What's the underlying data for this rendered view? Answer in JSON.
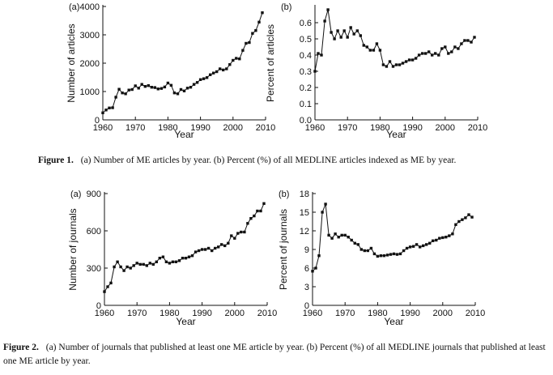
{
  "figures": [
    {
      "label": "Figure 1.",
      "caption": "(a) Number of ME articles by year. (b) Percent (%) of all MEDLINE articles indexed as ME by year."
    },
    {
      "label": "Figure 2.",
      "caption": "(a) Number of journals that published at least one ME article by year. (b) Percent (%) of all MEDLINE journals that published at least one ME article by year."
    }
  ],
  "chart_data": [
    {
      "id": "fig1a",
      "type": "line",
      "panel_label": "(a)",
      "title": "",
      "xlabel": "Year",
      "ylabel": "Number of articles",
      "xlim": [
        1960,
        2010
      ],
      "ylim": [
        0,
        4000
      ],
      "xticks": [
        1960,
        1970,
        1980,
        1990,
        2000,
        2010
      ],
      "yticks": [
        0,
        1000,
        2000,
        3000,
        4000
      ],
      "ytick_labels": [
        "0",
        "1000",
        "2000",
        "3000",
        "4000"
      ],
      "marker": "square",
      "grid": false,
      "series": [
        {
          "x": [
            1960,
            1961,
            1962,
            1963,
            1964,
            1965,
            1966,
            1967,
            1968,
            1969,
            1970,
            1971,
            1972,
            1973,
            1974,
            1975,
            1976,
            1977,
            1978,
            1979,
            1980,
            1981,
            1982,
            1983,
            1984,
            1985,
            1986,
            1987,
            1988,
            1989,
            1990,
            1991,
            1992,
            1993,
            1994,
            1995,
            1996,
            1997,
            1998,
            1999,
            2000,
            2001,
            2002,
            2003,
            2004,
            2005,
            2006,
            2007,
            2008,
            2009
          ],
          "y": [
            250,
            350,
            420,
            430,
            800,
            1080,
            950,
            920,
            1050,
            1070,
            1200,
            1120,
            1250,
            1180,
            1210,
            1150,
            1140,
            1090,
            1110,
            1160,
            1300,
            1220,
            950,
            920,
            1070,
            1020,
            1120,
            1150,
            1250,
            1320,
            1420,
            1450,
            1490,
            1590,
            1650,
            1700,
            1800,
            1760,
            1800,
            1950,
            2100,
            2170,
            2150,
            2450,
            2700,
            2730,
            3050,
            3150,
            3450,
            3780
          ]
        }
      ]
    },
    {
      "id": "fig1b",
      "type": "line",
      "panel_label": "(b)",
      "title": "",
      "xlabel": "Year",
      "ylabel": "Percent of articles",
      "xlim": [
        1960,
        2010
      ],
      "ylim": [
        0,
        0.7
      ],
      "xticks": [
        1960,
        1970,
        1980,
        1990,
        2000,
        2010
      ],
      "yticks": [
        0,
        0.1,
        0.2,
        0.3,
        0.4,
        0.5,
        0.6
      ],
      "ytick_labels": [
        "0.0",
        "0.1",
        "0.2",
        "0.3",
        "0.4",
        "0.5",
        "0.6"
      ],
      "marker": "square",
      "grid": false,
      "series": [
        {
          "x": [
            1960,
            1961,
            1962,
            1963,
            1964,
            1965,
            1966,
            1967,
            1968,
            1969,
            1970,
            1971,
            1972,
            1973,
            1974,
            1975,
            1976,
            1977,
            1978,
            1979,
            1980,
            1981,
            1982,
            1983,
            1984,
            1985,
            1986,
            1987,
            1988,
            1989,
            1990,
            1991,
            1992,
            1993,
            1994,
            1995,
            1996,
            1997,
            1998,
            1999,
            2000,
            2001,
            2002,
            2003,
            2004,
            2005,
            2006,
            2007,
            2008,
            2009
          ],
          "y": [
            0.3,
            0.41,
            0.4,
            0.61,
            0.68,
            0.54,
            0.5,
            0.55,
            0.51,
            0.55,
            0.51,
            0.57,
            0.53,
            0.55,
            0.52,
            0.46,
            0.45,
            0.43,
            0.43,
            0.47,
            0.43,
            0.34,
            0.33,
            0.36,
            0.33,
            0.34,
            0.34,
            0.35,
            0.36,
            0.37,
            0.37,
            0.38,
            0.4,
            0.41,
            0.41,
            0.42,
            0.4,
            0.41,
            0.4,
            0.44,
            0.45,
            0.41,
            0.42,
            0.45,
            0.44,
            0.47,
            0.49,
            0.49,
            0.48,
            0.51
          ]
        }
      ]
    },
    {
      "id": "fig2a",
      "type": "line",
      "panel_label": "(a)",
      "title": "",
      "xlabel": "Year",
      "ylabel": "Number of journals",
      "xlim": [
        1960,
        2010
      ],
      "ylim": [
        0,
        900
      ],
      "xticks": [
        1960,
        1970,
        1980,
        1990,
        2000,
        2010
      ],
      "yticks": [
        0,
        300,
        600,
        900
      ],
      "ytick_labels": [
        "0",
        "300",
        "600",
        "900"
      ],
      "marker": "square",
      "grid": false,
      "series": [
        {
          "x": [
            1960,
            1961,
            1962,
            1963,
            1964,
            1965,
            1966,
            1967,
            1968,
            1969,
            1970,
            1971,
            1972,
            1973,
            1974,
            1975,
            1976,
            1977,
            1978,
            1979,
            1980,
            1981,
            1982,
            1983,
            1984,
            1985,
            1986,
            1987,
            1988,
            1989,
            1990,
            1991,
            1992,
            1993,
            1994,
            1995,
            1996,
            1997,
            1998,
            1999,
            2000,
            2001,
            2002,
            2003,
            2004,
            2005,
            2006,
            2007,
            2008,
            2009
          ],
          "y": [
            110,
            150,
            180,
            310,
            350,
            310,
            280,
            310,
            300,
            320,
            340,
            330,
            330,
            320,
            340,
            330,
            350,
            380,
            390,
            350,
            340,
            350,
            350,
            360,
            380,
            380,
            390,
            400,
            430,
            440,
            450,
            450,
            460,
            440,
            460,
            470,
            490,
            480,
            500,
            560,
            540,
            580,
            590,
            590,
            660,
            700,
            720,
            760,
            760,
            820
          ]
        }
      ]
    },
    {
      "id": "fig2b",
      "type": "line",
      "panel_label": "(b)",
      "title": "",
      "xlabel": "Year",
      "ylabel": "Percent of journals",
      "xlim": [
        1960,
        2010
      ],
      "ylim": [
        0,
        18
      ],
      "xticks": [
        1960,
        1970,
        1980,
        1990,
        2000,
        2010
      ],
      "yticks": [
        0,
        3,
        6,
        9,
        12,
        15,
        18
      ],
      "ytick_labels": [
        "0",
        "3",
        "6",
        "9",
        "12",
        "15",
        "18"
      ],
      "marker": "square",
      "grid": false,
      "series": [
        {
          "x": [
            1960,
            1961,
            1962,
            1963,
            1964,
            1965,
            1966,
            1967,
            1968,
            1969,
            1970,
            1971,
            1972,
            1973,
            1974,
            1975,
            1976,
            1977,
            1978,
            1979,
            1980,
            1981,
            1982,
            1983,
            1984,
            1985,
            1986,
            1987,
            1988,
            1989,
            1990,
            1991,
            1992,
            1993,
            1994,
            1995,
            1996,
            1997,
            1998,
            1999,
            2000,
            2001,
            2002,
            2003,
            2004,
            2005,
            2006,
            2007,
            2008,
            2009
          ],
          "y": [
            5.5,
            6.0,
            8.0,
            15.0,
            16.3,
            11.3,
            10.8,
            11.5,
            11.0,
            11.3,
            11.3,
            11.0,
            10.5,
            10.0,
            9.8,
            9.0,
            8.8,
            8.8,
            9.2,
            8.3,
            7.9,
            8.0,
            8.0,
            8.1,
            8.2,
            8.3,
            8.2,
            8.3,
            8.8,
            9.2,
            9.4,
            9.5,
            9.8,
            9.4,
            9.6,
            9.8,
            10.0,
            10.4,
            10.5,
            10.8,
            10.9,
            11.0,
            11.2,
            11.5,
            13.0,
            13.5,
            13.8,
            14.1,
            14.6,
            14.2
          ]
        }
      ]
    }
  ]
}
